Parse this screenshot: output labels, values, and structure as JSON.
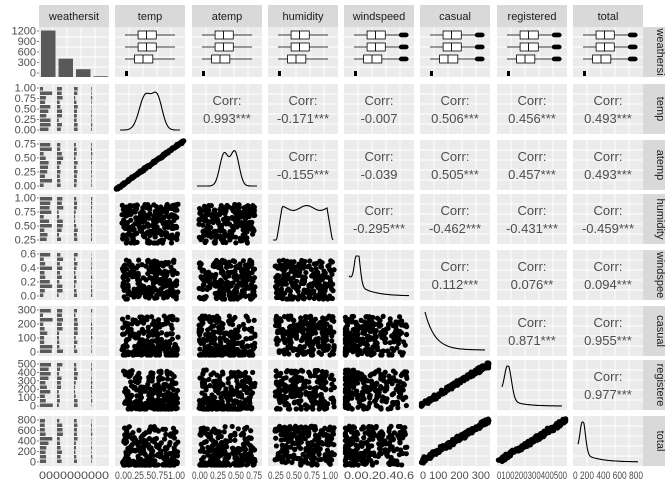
{
  "chart_data": {
    "type": "pairplot",
    "variables": [
      "weathersit",
      "temp",
      "atemp",
      "humidity",
      "windspeed",
      "casual",
      "registered",
      "total"
    ],
    "row_strip_labels": [
      "weathersi",
      "temp",
      "atemp",
      "humidity",
      "windspee",
      "casual",
      "registere",
      "total"
    ],
    "corr_label": "Corr:",
    "correlations": [
      {
        "row": 2,
        "col": 1,
        "value": "0.993***"
      },
      {
        "row": 3,
        "col": 1,
        "value": "-0.171***"
      },
      {
        "row": 3,
        "col": 2,
        "value": "-0.155***"
      },
      {
        "row": 4,
        "col": 1,
        "value": "-0.007"
      },
      {
        "row": 4,
        "col": 2,
        "value": "-0.039"
      },
      {
        "row": 4,
        "col": 3,
        "value": "-0.295***"
      },
      {
        "row": 5,
        "col": 1,
        "value": "0.506***"
      },
      {
        "row": 5,
        "col": 2,
        "value": "0.505***"
      },
      {
        "row": 5,
        "col": 3,
        "value": "-0.462***"
      },
      {
        "row": 5,
        "col": 4,
        "value": "0.112***"
      },
      {
        "row": 6,
        "col": 1,
        "value": "0.456***"
      },
      {
        "row": 6,
        "col": 2,
        "value": "0.457***"
      },
      {
        "row": 6,
        "col": 3,
        "value": "-0.431***"
      },
      {
        "row": 6,
        "col": 4,
        "value": "0.076**"
      },
      {
        "row": 6,
        "col": 5,
        "value": "0.871***"
      },
      {
        "row": 7,
        "col": 1,
        "value": "0.493***"
      },
      {
        "row": 7,
        "col": 2,
        "value": "0.493***"
      },
      {
        "row": 7,
        "col": 3,
        "value": "-0.459***"
      },
      {
        "row": 7,
        "col": 4,
        "value": "0.094***"
      },
      {
        "row": 7,
        "col": 5,
        "value": "0.955***"
      },
      {
        "row": 7,
        "col": 6,
        "value": "0.977***"
      }
    ],
    "y_ticks": [
      [
        "0",
        "300",
        "600",
        "900",
        "1200"
      ],
      [
        "0.00",
        "0.25",
        "0.50",
        "0.75",
        "1.00"
      ],
      [
        "0.00",
        "0.25",
        "0.50",
        "0.75"
      ],
      [
        "0.25",
        "0.50",
        "0.75",
        "1.00"
      ],
      [
        "0.0",
        "0.2",
        "0.4",
        "0.6"
      ],
      [
        "0",
        "100",
        "200",
        "300"
      ],
      [
        "0",
        "100",
        "200",
        "300",
        "400",
        "500"
      ],
      [
        "0",
        "200",
        "400",
        "600",
        "800"
      ]
    ],
    "x_ticks": [
      "0000000000",
      "0.00.25.50.751.00",
      "0.00 0.25 0.50 0.75",
      "0.25 0.50 0.75 1.00",
      "0.00.20.40.6",
      "0 100 200 300",
      "0100200300400500",
      "0 200 400 600 800"
    ],
    "weathersit_bars": [
      1190,
      470,
      200,
      20
    ],
    "weathersit_ylim": [
      0,
      1280
    ],
    "colors": {
      "panel": "#ebebeb",
      "strip": "#d9d9d9",
      "ink": "#000000",
      "bar": "#595959",
      "corr_text": "#4d4d4d"
    }
  }
}
